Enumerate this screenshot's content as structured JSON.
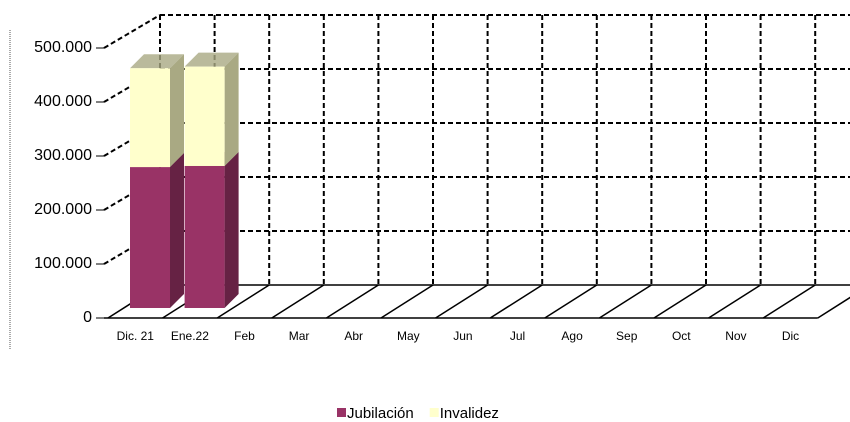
{
  "chart_data": {
    "type": "bar",
    "stacked": true,
    "categories": [
      "Dic. 21",
      "Ene.22",
      "Feb",
      "Mar",
      "Abr",
      "May",
      "Jun",
      "Jul",
      "Ago",
      "Sep",
      "Oct",
      "Nov",
      "Dic"
    ],
    "series": [
      {
        "name": "Jubilación",
        "color": "#993366",
        "side_color": "#662244",
        "values": [
          261000,
          263000,
          null,
          null,
          null,
          null,
          null,
          null,
          null,
          null,
          null,
          null,
          null
        ]
      },
      {
        "name": "Invalidez",
        "color": "#ffffcc",
        "side_color": "#a9a983",
        "values": [
          183000,
          184000,
          null,
          null,
          null,
          null,
          null,
          null,
          null,
          null,
          null,
          null,
          null
        ]
      }
    ],
    "ylim": [
      0,
      500000
    ],
    "yticks": [
      0,
      {
        "value": 100000,
        "label": "100.000"
      },
      {
        "value": 200000,
        "label": "200.000"
      },
      {
        "value": 300000,
        "label": "300.000"
      },
      {
        "value": 400000,
        "label": "400.000"
      },
      {
        "value": 500000,
        "label": "500.000"
      }
    ],
    "grid": true,
    "legend": "bottom"
  }
}
